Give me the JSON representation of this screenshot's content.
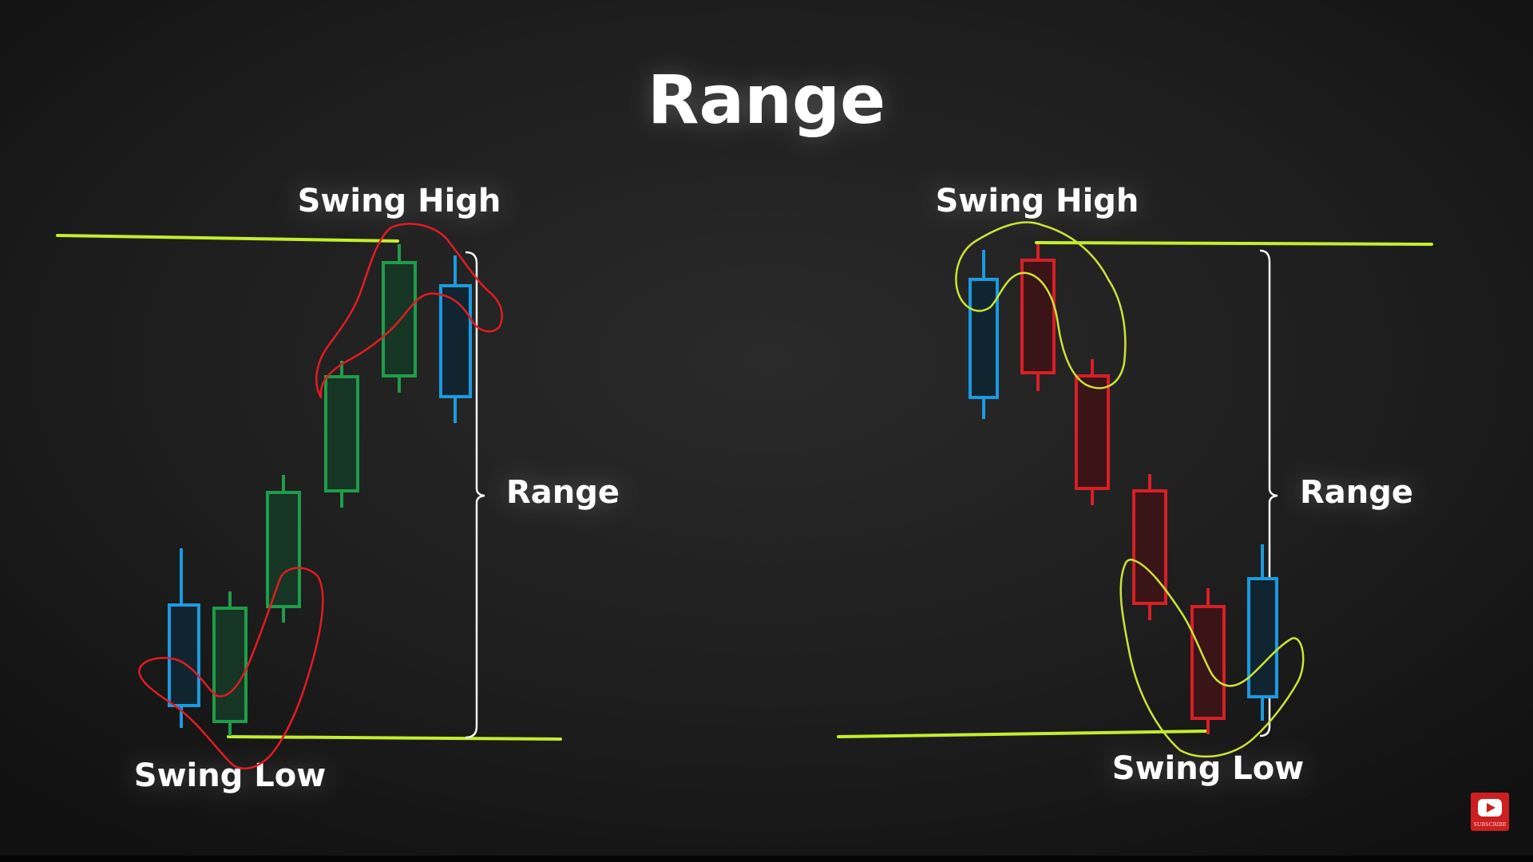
{
  "title": "Range",
  "colors": {
    "background": "#1c1c1c",
    "text": "#ffffff",
    "level_line": "#c3ee2c",
    "annotation_left": "#e21b22",
    "annotation_right": "#cde336",
    "bullish": "#1f9c4a",
    "bearish": "#d71f26",
    "neutral": "#1b9ae0",
    "bracket": "#f2f2f2"
  },
  "panels": [
    {
      "id": "uptrend",
      "labels": {
        "swing_high": "Swing High",
        "range": "Range",
        "swing_low": "Swing Low"
      },
      "candle_colors": [
        "neutral",
        "bullish",
        "bullish",
        "bullish",
        "bullish",
        "neutral"
      ]
    },
    {
      "id": "downtrend",
      "labels": {
        "swing_high": "Swing High",
        "range": "Range",
        "swing_low": "Swing Low"
      },
      "candle_colors": [
        "neutral",
        "bearish",
        "bearish",
        "bearish",
        "bearish",
        "neutral"
      ]
    }
  ],
  "badge": {
    "icon": "youtube-play-icon",
    "text": "SUBSCRIBE",
    "color": "#cc1f1f"
  }
}
